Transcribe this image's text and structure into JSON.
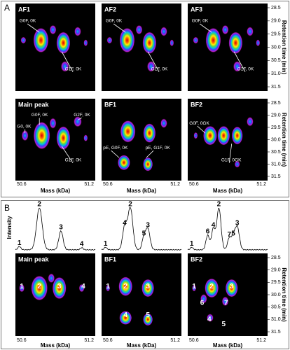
{
  "panel_a": {
    "label": "A",
    "panels": [
      {
        "title": "AF1",
        "annotations": [
          "G0F, 0K",
          "G1F, 0K"
        ]
      },
      {
        "title": "AF2",
        "annotations": [
          "G0F, 0K",
          "G1F, 0K"
        ]
      },
      {
        "title": "AF3",
        "annotations": [
          "G0F, 0K",
          "G1F, 0K"
        ]
      },
      {
        "title": "Main peak",
        "annotations": [
          "G0F, 0K",
          "G0, 0K",
          "G2F, 0K",
          "G1F, 0K"
        ]
      },
      {
        "title": "BF1",
        "annotations": [
          "pE, G0F, 0K",
          "pE, G1F, 0K"
        ]
      },
      {
        "title": "BF2",
        "annotations": [
          "G0F, 0GK",
          "G1F, 0GK"
        ]
      }
    ],
    "y_ticks": [
      "28.5",
      "29.0",
      "29.5",
      "30.0",
      "30.5",
      "31.0",
      "31.5"
    ],
    "y_label": "Retention time (min)",
    "x_ticks": [
      "50.6",
      "51.2"
    ],
    "x_label": "Mass (kDa)"
  },
  "panel_b": {
    "label": "B",
    "spectra_y_label": "Intensity",
    "spectra": [
      {
        "peaks": [
          "1",
          "2",
          "3",
          "4"
        ]
      },
      {
        "peaks": [
          "1",
          "4",
          "2",
          "5",
          "3"
        ]
      },
      {
        "peaks": [
          "1",
          "6",
          "4",
          "2",
          "7",
          "5",
          "3"
        ]
      }
    ],
    "panels": [
      {
        "title": "Main peak",
        "peaks": [
          "1",
          "2",
          "3",
          "4"
        ]
      },
      {
        "title": "BF1",
        "peaks": [
          "1",
          "2",
          "3",
          "4",
          "5"
        ]
      },
      {
        "title": "BF2",
        "peaks": [
          "1",
          "2",
          "3",
          "6",
          "7",
          "4",
          "5"
        ]
      }
    ],
    "y_ticks": [
      "28.5",
      "29.0",
      "29.5",
      "30.0",
      "30.5",
      "31.0",
      "31.5"
    ],
    "y_label": "Retention time (min)",
    "x_ticks": [
      "50.6",
      "51.2"
    ],
    "x_label": "Mass (kDa)"
  }
}
